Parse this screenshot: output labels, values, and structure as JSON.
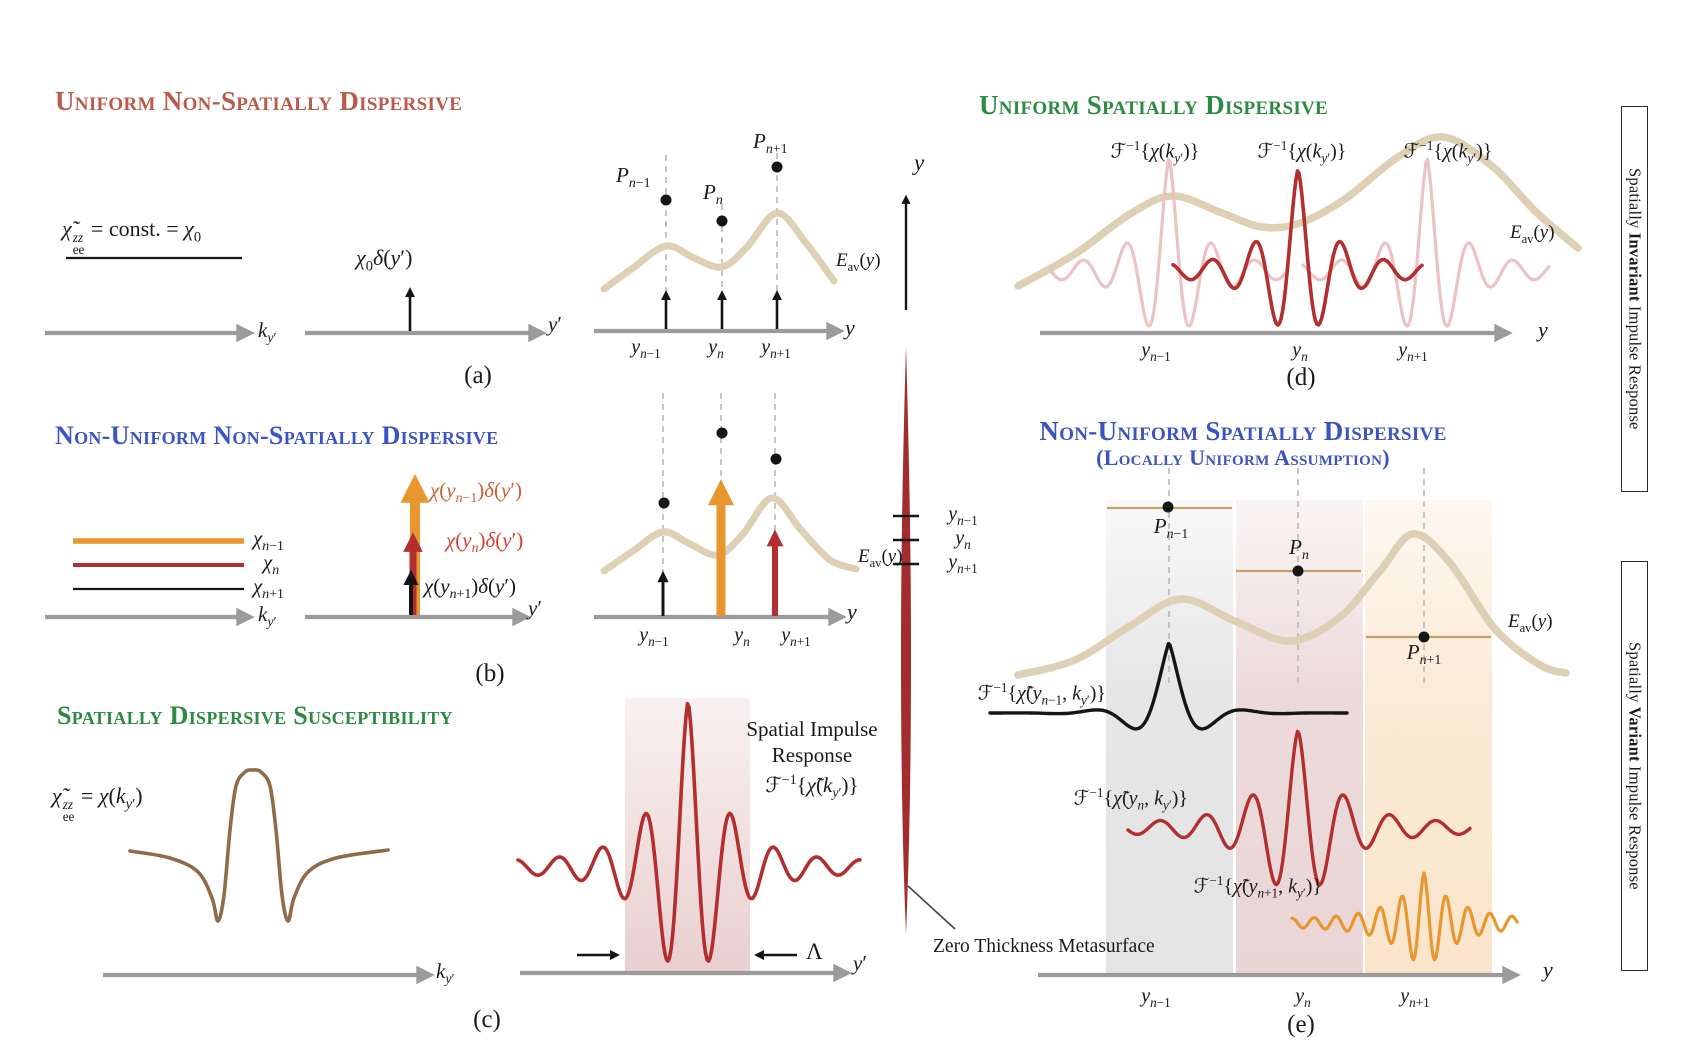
{
  "panels": {
    "a": {
      "title": "Uniform Non-Spatially Dispersive",
      "formula_html": "<i>χ̃</i><span class='ss'><span class='pp'>zz</span><span class='qq'>ee</span></span> = const. = <i>χ</i><sub>0</sub>",
      "delta_label_html": "<i>χ</i><sub>0</sub><i>δ</i>(<i>y</i>′)",
      "k_axis_html": "<i>k</i><sub><i>y</i>′</sub>",
      "y_prime_html": "<i>y</i>′",
      "y_axis_html": "<i>y</i>",
      "p_nm1_html": "<i>P</i><sub><i>n</i>−1</sub>",
      "p_n_html": "<i>P</i><sub><i>n</i></sub>",
      "p_np1_html": "<i>P</i><sub><i>n</i>+1</sub>",
      "eav_html": "<i>E</i><sub>av</sub>(<i>y</i>)",
      "tick_nm1_html": "<i>y</i><sub><i>n</i>−1</sub>",
      "tick_n_html": "<i>y</i><sub><i>n</i></sub>",
      "tick_np1_html": "<i>y</i><sub><i>n</i>+1</sub>",
      "caption": "(a)"
    },
    "b": {
      "title": "Non-Uniform Non-Spatially Dispersive",
      "legend_nm1_html": "<i>χ</i><sub><i>n</i>−1</sub>",
      "legend_n_html": "<i>χ</i><sub><i>n</i></sub>",
      "legend_np1_html": "<i>χ</i><sub><i>n</i>+1</sub>",
      "arrow_nm1_html": "<i>χ</i>(<i>y</i><sub><i>n</i>−1</sub>)<i>δ</i>(<i>y</i>′)",
      "arrow_n_html": "<i>χ</i>(<i>y</i><sub><i>n</i></sub>)<i>δ</i>(<i>y</i>′)",
      "arrow_np1_html": "<i>χ</i>(<i>y</i><sub><i>n</i>+1</sub>)<i>δ</i>(<i>y</i>′)",
      "k_axis_html": "<i>k</i><sub><i>y</i>′</sub>",
      "y_prime_html": "<i>y</i>′",
      "y_axis_html": "<i>y</i>",
      "eav_html": "<i>E</i><sub>av</sub>(<i>y</i>)",
      "tick_nm1_html": "<i>y</i><sub><i>n</i>−1</sub>",
      "tick_n_html": "<i>y</i><sub><i>n</i></sub>",
      "tick_np1_html": "<i>y</i><sub><i>n</i>+1</sub>",
      "caption": "(b)"
    },
    "c": {
      "title": "Spatially Dispersive Susceptibility",
      "formula_html": "<i>χ̃</i><span class='ss'><span class='pp'>zz</span><span class='qq'>ee</span></span> = <i>χ</i>(<i>k</i><sub><i>y</i>′</sub>)",
      "sir_line1": "Spatial Impulse",
      "sir_line2": "Response",
      "sir_formula_html": "ℱ<sup>−1</sup>{<i>χ̃</i>(<i>k</i><sub><i>y</i>′</sub>)}",
      "lambda": "Λ",
      "k_axis_html": "<i>k</i><sub><i>y</i>′</sub>",
      "y_prime_html": "<i>y</i>′",
      "caption": "(c)"
    },
    "d": {
      "title": "Uniform Spatially Dispersive",
      "f_label_html": "ℱ<sup>−1</sup>{<i>χ</i>(<i>k</i><sub><i>y</i>′</sub>)}",
      "eav_html": "<i>E</i><sub>av</sub>(<i>y</i>)",
      "y_axis_html": "<i>y</i>",
      "tick_nm1_html": "<i>y</i><sub><i>n</i>−1</sub>",
      "tick_n_html": "<i>y</i><sub><i>n</i></sub>",
      "tick_np1_html": "<i>y</i><sub><i>n</i>+1</sub>",
      "caption": "(d)"
    },
    "e": {
      "title": "Non-Uniform Spatially Dispersive",
      "subtitle": "(Locally Uniform Assumption)",
      "p_nm1_html": "<i>P</i><sub><i>n</i>−1</sub>",
      "p_n_html": "<i>P</i><sub><i>n</i></sub>",
      "p_np1_html": "<i>P</i><sub><i>n</i>+1</sub>",
      "eav_html": "<i>E</i><sub>av</sub>(<i>y</i>)",
      "f_black_html": "ℱ<sup>−1</sup>{<i>χ̃</i>(<i>y</i><sub><i>n</i>−1</sub>, <i>k</i><sub><i>y</i>′</sub>)}",
      "f_red_html": "ℱ<sup>−1</sup>{<i>χ̃</i>(<i>y</i><sub><i>n</i></sub>, <i>k</i><sub><i>y</i>′</sub>)}",
      "f_orange_html": "ℱ<sup>−1</sup>{<i>χ̃</i>(<i>y</i><sub><i>n</i>+1</sub>, <i>k</i><sub><i>y</i>′</sub>)}",
      "y_axis_html": "<i>y</i>",
      "tick_nm1_html": "<i>y</i><sub><i>n</i>−1</sub>",
      "tick_n_html": "<i>y</i><sub><i>n</i></sub>",
      "tick_np1_html": "<i>y</i><sub><i>n</i>+1</sub>",
      "caption": "(e)"
    }
  },
  "middle": {
    "y_axis_html": "<i>y</i>",
    "tick_nm1_html": "<i>y</i><sub><i>n</i>−1</sub>",
    "tick_n_html": "<i>y</i><sub><i>n</i></sub>",
    "tick_np1_html": "<i>y</i><sub><i>n</i>+1</sub>"
  },
  "annotations": {
    "zero_thickness": "Zero Thickness Metasurface"
  },
  "sidebars": {
    "top_html": "Spatially <b>Invariant</b> Impulse Response",
    "bottom_html": "Spatially <b>Variant</b> Impulse Response"
  },
  "colors": {
    "title_brick": "#bc5a4a",
    "title_blue": "#3b53c3",
    "title_green": "#2c8a42",
    "beige_field": "#ddd0b4",
    "dark_red": "#b32f2f",
    "light_pink": "#edc2c4",
    "orange": "#e8962f",
    "brown": "#8e6b49",
    "metasurface_red": "#a32c2d",
    "tan_line": "#c5a06b",
    "axis_gray": "#9b9b9b"
  }
}
